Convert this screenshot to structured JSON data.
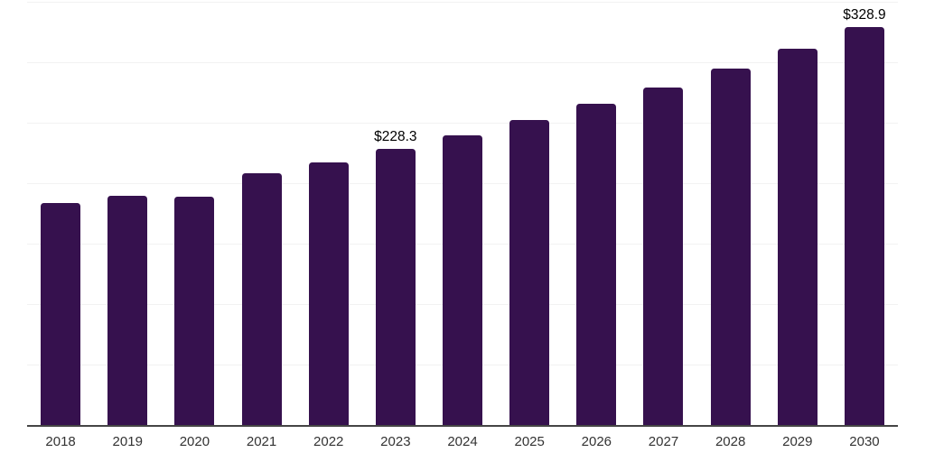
{
  "chart_data": {
    "type": "bar",
    "title": "",
    "xlabel": "",
    "ylabel": "",
    "categories": [
      "2018",
      "2019",
      "2020",
      "2021",
      "2022",
      "2023",
      "2024",
      "2025",
      "2026",
      "2027",
      "2028",
      "2029",
      "2030"
    ],
    "values": [
      183.3,
      189.5,
      188.7,
      208.0,
      217.2,
      228.3,
      239.5,
      252.0,
      265.5,
      279.0,
      294.7,
      311.3,
      328.9
    ],
    "data_labels": {
      "2023": "$228.3",
      "2030": "$328.9"
    },
    "ylim": [
      0,
      350
    ],
    "gridline_step": 50,
    "grid": "horizontal",
    "legend": "none",
    "bar_color": "#36114E",
    "background": "#FFFFFF"
  },
  "style": {
    "gridline_color": "#F2F2F2",
    "axis_line_color": "#454545",
    "tick_label_color": "#333333",
    "data_label_color": "#000000"
  }
}
